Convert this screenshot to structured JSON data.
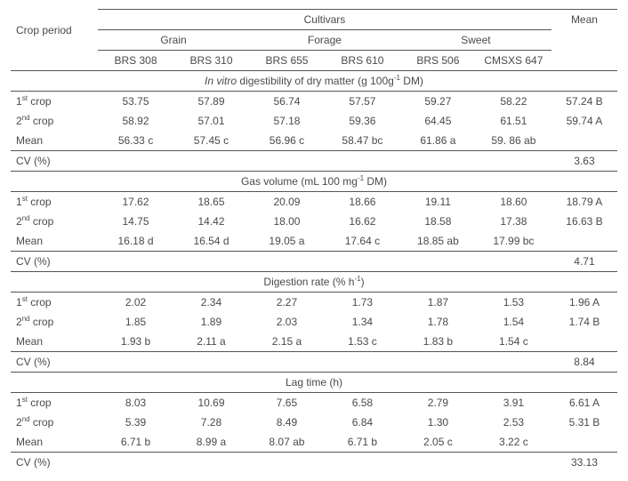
{
  "header": {
    "cropPeriod": "Crop period",
    "cultivars": "Cultivars",
    "mean": "Mean",
    "groups": {
      "grain": "Grain",
      "forage": "Forage",
      "sweet": "Sweet"
    },
    "cultivarNames": [
      "BRS 308",
      "BRS 310",
      "BRS 655",
      "BRS 610",
      "BRS 506",
      "CMSXS 647"
    ]
  },
  "rows": {
    "crop1": "1",
    "crop1suf": "st",
    "crop2": "2",
    "crop2suf": "nd",
    "cropWord": " crop",
    "meanRow": "Mean",
    "cv": "CV (%)"
  },
  "sections": [
    {
      "titlePre": "In vitro",
      "titlePost": " digestibility of dry matter (g 100g",
      "titleSup": "-1",
      "titleTail": " DM)",
      "r1": [
        "53.75",
        "57.89",
        "56.74",
        "57.57",
        "59.27",
        "58.22",
        "57.24 B"
      ],
      "r2": [
        "58.92",
        "57.01",
        "57.18",
        "59.36",
        "64.45",
        "61.51",
        "59.74 A"
      ],
      "rm": [
        "56.33 c",
        "57.45 c",
        "56.96 c",
        "58.47 bc",
        "61.86 a",
        "59. 86 ab",
        ""
      ],
      "cv": "3.63"
    },
    {
      "titlePre": "",
      "titlePost": "Gas volume (mL 100 mg",
      "titleSup": "-1",
      "titleTail": " DM)",
      "r1": [
        "17.62",
        "18.65",
        "20.09",
        "18.66",
        "19.11",
        "18.60",
        "18.79 A"
      ],
      "r2": [
        "14.75",
        "14.42",
        "18.00",
        "16.62",
        "18.58",
        "17.38",
        "16.63 B"
      ],
      "rm": [
        "16.18 d",
        "16.54 d",
        "19.05 a",
        "17.64 c",
        "18.85 ab",
        "17.99 bc",
        ""
      ],
      "cv": "4.71"
    },
    {
      "titlePre": "",
      "titlePost": "Digestion rate (% h",
      "titleSup": "-1",
      "titleTail": ")",
      "r1": [
        "2.02",
        "2.34",
        "2.27",
        "1.73",
        "1.87",
        "1.53",
        "1.96 A"
      ],
      "r2": [
        "1.85",
        "1.89",
        "2.03",
        "1.34",
        "1.78",
        "1.54",
        "1.74 B"
      ],
      "rm": [
        "1.93 b",
        "2.11 a",
        "2.15 a",
        "1.53 c",
        "1.83 b",
        "1.54 c",
        ""
      ],
      "cv": "8.84"
    },
    {
      "titlePre": "",
      "titlePost": "Lag time (h)",
      "titleSup": "",
      "titleTail": "",
      "r1": [
        "8.03",
        "10.69",
        "7.65",
        "6.58",
        "2.79",
        "3.91",
        "6.61 A"
      ],
      "r2": [
        "5.39",
        "7.28",
        "8.49",
        "6.84",
        "1.30",
        "2.53",
        "5.31 B"
      ],
      "rm": [
        "6.71 b",
        "8.99 a",
        "8.07 ab",
        "6.71 b",
        "2.05 c",
        "3.22 c",
        ""
      ],
      "cv": "33.13"
    }
  ]
}
